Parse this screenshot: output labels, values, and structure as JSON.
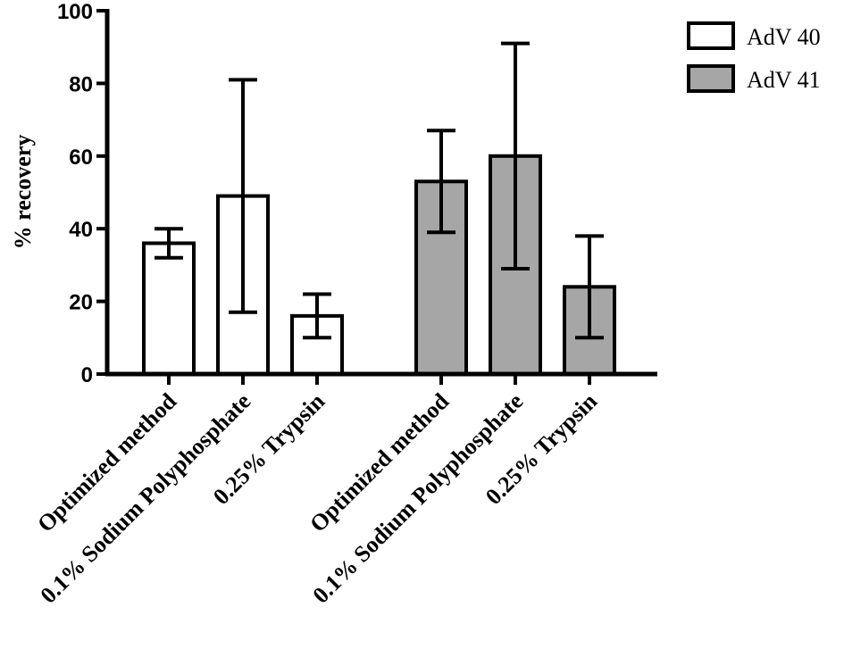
{
  "chart_data": {
    "type": "bar",
    "title": "",
    "xlabel": "",
    "ylabel": "% recovery",
    "ylim": [
      0,
      100
    ],
    "yticks": [
      0,
      20,
      40,
      60,
      80,
      100
    ],
    "ytick_labels": [
      "0",
      "20",
      "40",
      "60",
      "80",
      "100"
    ],
    "grid": false,
    "legend_position": "top-right",
    "series": [
      {
        "name": "AdV 40",
        "color": "#ffffff",
        "categories": [
          "Optimized method",
          "0.1% Sodium Polyphosphate",
          "0.25% Trypsin"
        ],
        "values": [
          36,
          49,
          16
        ],
        "error_low": [
          32,
          17,
          10
        ],
        "error_high": [
          40,
          81,
          22
        ]
      },
      {
        "name": "AdV 41",
        "color": "#a6a6a6",
        "categories": [
          "Optimized method",
          "0.1% Sodium Polyphosphate",
          "0.25% Trypsin"
        ],
        "values": [
          53,
          60,
          24
        ],
        "error_low": [
          39,
          29,
          10
        ],
        "error_high": [
          67,
          91,
          38
        ]
      }
    ]
  }
}
